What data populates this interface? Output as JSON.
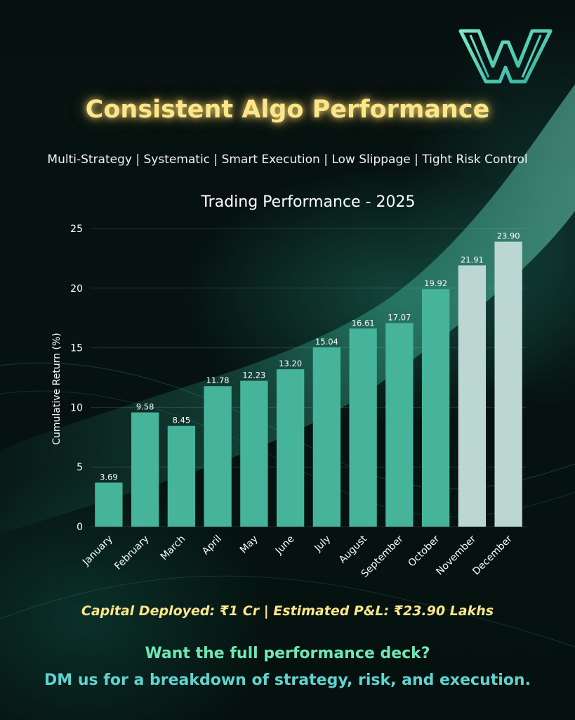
{
  "title": "Consistent Algo Performance",
  "subtitle": "Multi-Strategy | Systematic | Smart Execution | Low Slippage | Tight Risk Control",
  "capital_line": "Capital Deployed: ₹1 Cr | Estimated P&L: ₹23.90 Lakhs",
  "cta_line1": "Want the full performance deck?",
  "cta_line2": "DM us for a breakdown of strategy, risk, and execution.",
  "logo_icon": "w-logo-icon",
  "colors": {
    "bar_primary": "#46b49a",
    "bar_highlight": "#bcd7d2",
    "title": "#fde68a",
    "cta": "#6ee7b7"
  },
  "chart_data": {
    "type": "bar",
    "title": "Trading Performance - 2025",
    "xlabel": "",
    "ylabel": "Cumulative Return (%)",
    "ylim": [
      0,
      25
    ],
    "yticks": [
      "0",
      "5",
      "10",
      "15",
      "20",
      "25"
    ],
    "grid": true,
    "categories": [
      "January",
      "February",
      "March",
      "April",
      "May",
      "June",
      "July",
      "August",
      "September",
      "October",
      "November",
      "December"
    ],
    "values": [
      3.69,
      9.58,
      8.45,
      11.78,
      12.23,
      13.2,
      15.04,
      16.61,
      17.07,
      19.92,
      21.91,
      23.9
    ],
    "value_labels": [
      "3.69",
      "9.58",
      "8.45",
      "11.78",
      "12.23",
      "13.20",
      "15.04",
      "16.61",
      "17.07",
      "19.92",
      "21.91",
      "23.90"
    ],
    "highlighted_categories": [
      "November",
      "December"
    ]
  }
}
